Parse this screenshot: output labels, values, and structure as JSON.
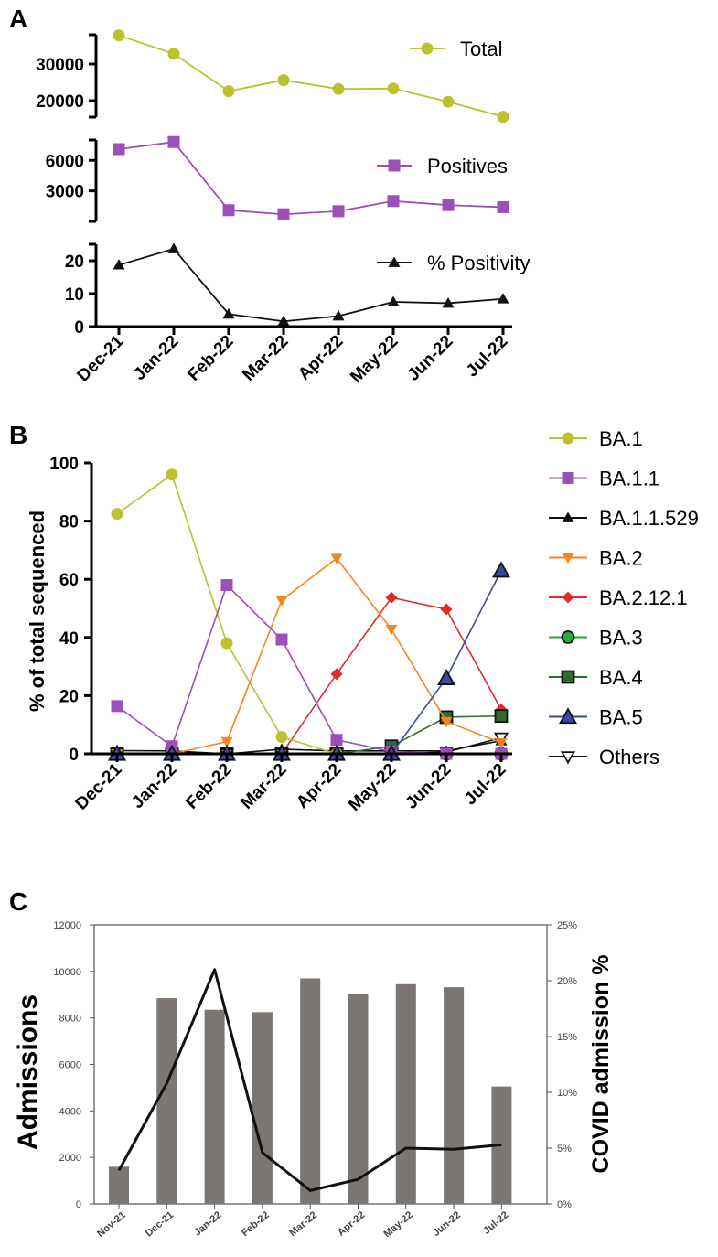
{
  "colors": {
    "total": "#bcc12f",
    "positives": "#9b4fb8",
    "positivity": "#111111",
    "ba1": "#bcc12f",
    "ba11": "#9b4fb8",
    "ba11529": "#111111",
    "ba2": "#f5861f",
    "ba2121": "#e22b2b",
    "ba3": "#27a83b",
    "ba4": "#2f6e2a",
    "ba5": "#3b4aa0",
    "others": "#111111",
    "bars": "#7b7574"
  },
  "chart_data": [
    {
      "panel": "A",
      "type": "line",
      "categories": [
        "Dec-21",
        "Jan-22",
        "Feb-22",
        "Mar-22",
        "Apr-22",
        "May-22",
        "Jun-22",
        "Jul-22"
      ],
      "subplots": [
        {
          "name": "Total",
          "legend": "Total",
          "marker": "circle",
          "color_key": "total",
          "yticks": [
            20000,
            30000
          ],
          "ylim": [
            15000,
            40000
          ],
          "values": [
            37800,
            32800,
            22600,
            25600,
            23200,
            23300,
            19700,
            15600
          ]
        },
        {
          "name": "Positives",
          "legend": "Positives",
          "marker": "square",
          "color_key": "positives",
          "yticks": [
            3000,
            6000
          ],
          "ylim": [
            0,
            8000
          ],
          "values": [
            7100,
            7800,
            1100,
            700,
            1000,
            2000,
            1600,
            1400
          ]
        },
        {
          "name": "% Positivity",
          "legend": "% Positivity",
          "marker": "triangle",
          "color_key": "positivity",
          "yticks": [
            0,
            10,
            20
          ],
          "ylim": [
            0,
            25
          ],
          "values": [
            18.7,
            23.6,
            3.8,
            1.6,
            3.2,
            7.5,
            7.1,
            8.4
          ]
        }
      ]
    },
    {
      "panel": "B",
      "type": "line",
      "ylabel": "% of total sequenced",
      "ylim": [
        0,
        100
      ],
      "yticks": [
        0,
        20,
        40,
        60,
        80,
        100
      ],
      "categories": [
        "Dec-21",
        "Jan-22",
        "Feb-22",
        "Mar-22",
        "Apr-22",
        "May-22",
        "Jun-22",
        "Jul-22"
      ],
      "series": [
        {
          "name": "BA.1",
          "marker": "circle",
          "color_key": "ba1",
          "values": [
            82.5,
            96,
            38,
            5.8,
            0,
            0,
            0,
            0
          ]
        },
        {
          "name": "BA.1.1",
          "marker": "square",
          "color_key": "ba11",
          "values": [
            16.4,
            2.6,
            58,
            39.3,
            4.8,
            0.8,
            0,
            0
          ]
        },
        {
          "name": "BA.1.1.529",
          "marker": "triangle",
          "color_key": "ba11529",
          "values": [
            1.1,
            1,
            0,
            1.6,
            1,
            1,
            1,
            4.5
          ]
        },
        {
          "name": "BA.2",
          "marker": "triangle-down",
          "color_key": "ba2",
          "values": [
            0,
            0,
            4.2,
            52.8,
            67.2,
            42.8,
            11.1,
            3.8
          ]
        },
        {
          "name": "BA.2.12.1",
          "marker": "diamond",
          "color_key": "ba2121",
          "values": [
            0,
            0,
            0,
            0,
            27.4,
            53.7,
            49.7,
            15.2
          ]
        },
        {
          "name": "BA.3",
          "marker": "circle-outline",
          "color_key": "ba3",
          "values": [
            0,
            0,
            0,
            0,
            0,
            0,
            0,
            0
          ]
        },
        {
          "name": "BA.4",
          "marker": "square-outline",
          "color_key": "ba4",
          "values": [
            0,
            0,
            0,
            0,
            0,
            2.6,
            12.6,
            13
          ]
        },
        {
          "name": "BA.5",
          "marker": "triangle-outline",
          "color_key": "ba5",
          "values": [
            0,
            0,
            0,
            0,
            0,
            0,
            26,
            63
          ]
        },
        {
          "name": "Others",
          "marker": "triangle-down-open",
          "color_key": "others",
          "values": [
            0,
            0,
            0,
            0,
            0,
            0,
            0.6,
            5.5
          ]
        }
      ]
    },
    {
      "panel": "C",
      "type": "bar",
      "categories": [
        "Nov-21",
        "Dec-21",
        "Jan-22",
        "Feb-22",
        "Mar-22",
        "Apr-22",
        "May-22",
        "Jun-22",
        "Jul-22"
      ],
      "ylabel": "Admissions",
      "ylim": [
        0,
        12000
      ],
      "yticks": [
        0,
        2000,
        4000,
        6000,
        8000,
        10000,
        12000
      ],
      "values": [
        1600,
        8850,
        8350,
        8250,
        9700,
        9050,
        9450,
        9320,
        5050
      ],
      "secondary": {
        "ylabel": "COVID admission %",
        "ylim": [
          0,
          25
        ],
        "yticks": [
          "0%",
          "5%",
          "10%",
          "15%",
          "20%",
          "25%"
        ],
        "values": [
          3.0,
          10.8,
          21.0,
          4.6,
          1.2,
          2.2,
          5.0,
          4.9,
          5.3
        ]
      }
    }
  ]
}
